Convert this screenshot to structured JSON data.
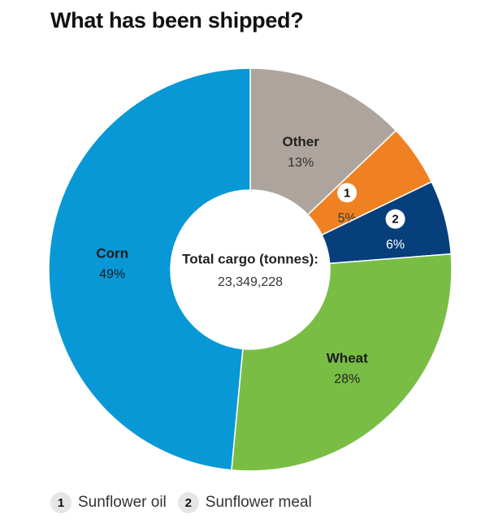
{
  "chart_data": {
    "type": "pie",
    "title": "What has been shipped?",
    "center_label": "Total cargo (tonnes):",
    "center_value": "23,349,228",
    "slices": [
      {
        "label": "Other",
        "value": 13,
        "pct_label": "13%",
        "color": "#ada59d",
        "label_color": "#222222",
        "pct_color": "#333333"
      },
      {
        "label": "",
        "badge": "1",
        "value": 5,
        "pct_label": "5%",
        "color": "#f08122",
        "label_color": "#222222",
        "pct_color": "#333333"
      },
      {
        "label": "",
        "badge": "2",
        "value": 6,
        "pct_label": "6%",
        "color": "#063f7c",
        "label_color": "#222222",
        "pct_color": "#ffffff"
      },
      {
        "label": "Wheat",
        "value": 28,
        "pct_label": "28%",
        "color": "#79bd45",
        "label_color": "#1a1a1a",
        "pct_color": "#222222"
      },
      {
        "label": "Corn",
        "value": 49,
        "pct_label": "49%",
        "color": "#0898d6",
        "label_color": "#1a1a1a",
        "pct_color": "#1a1a1a"
      }
    ],
    "legend": [
      {
        "badge": "1",
        "label": "Sunflower oil"
      },
      {
        "badge": "2",
        "label": "Sunflower meal"
      }
    ]
  }
}
